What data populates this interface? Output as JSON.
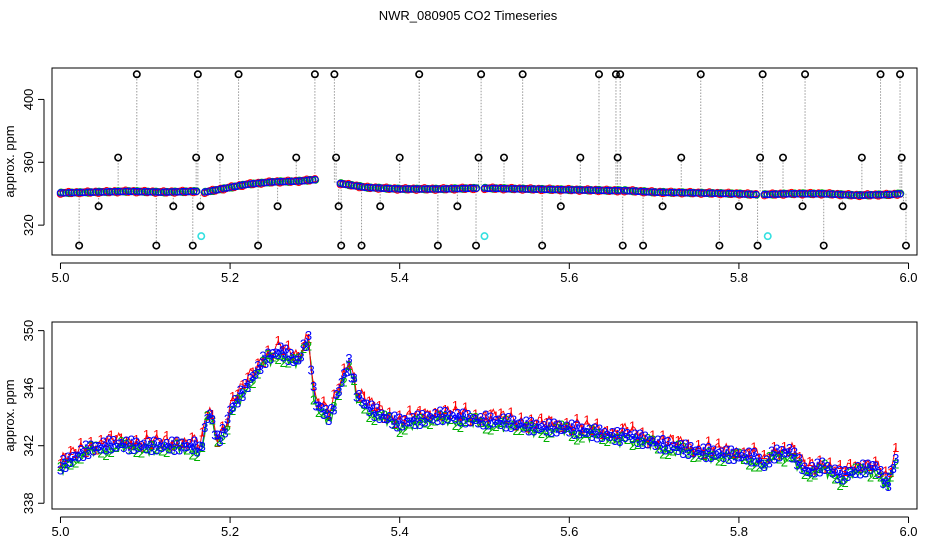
{
  "title": "NWR_080905  CO2 Timeseries",
  "colors": {
    "black": "#000000",
    "red": "#ff0000",
    "green": "#00b000",
    "blue": "#0000ff",
    "cyan": "#33e0e0",
    "grey": "#9a9a9a"
  },
  "chart_data": [
    {
      "type": "scatter",
      "name": "top-panel",
      "xlabel": "",
      "ylabel": "approx. ppm",
      "xlim": [
        4.99,
        6.01
      ],
      "ylim": [
        301,
        420
      ],
      "xticks": [
        5.0,
        5.2,
        5.4,
        5.6,
        5.8,
        6.0
      ],
      "xtick_labels": [
        "5.0",
        "5.2",
        "5.4",
        "5.6",
        "5.8",
        "6.0"
      ],
      "yticks": [
        320,
        360,
        400
      ],
      "ytick_labels": [
        "320",
        "360",
        "400"
      ],
      "baseline_segments": [
        {
          "x": [
            5.0,
            5.04,
            5.08,
            5.12,
            5.16
          ],
          "y": [
            340.5,
            341,
            341.5,
            341,
            341.5
          ]
        },
        {
          "x": [
            5.17,
            5.2,
            5.22,
            5.25,
            5.28,
            5.3
          ],
          "y": [
            341,
            344,
            346,
            347.5,
            348,
            349
          ]
        },
        {
          "x": [
            5.33,
            5.36,
            5.4,
            5.45,
            5.49
          ],
          "y": [
            346.5,
            344,
            343,
            343,
            343.5
          ]
        },
        {
          "x": [
            5.5,
            5.55,
            5.6,
            5.65,
            5.66
          ],
          "y": [
            343.5,
            343,
            342.5,
            342,
            342
          ]
        },
        {
          "x": [
            5.665,
            5.7,
            5.75,
            5.8,
            5.82
          ],
          "y": [
            342,
            341,
            340.5,
            340,
            339.5
          ]
        },
        {
          "x": [
            5.83,
            5.86,
            5.9,
            5.94,
            5.98,
            5.99
          ],
          "y": [
            339.5,
            340,
            340,
            339,
            339.5,
            340
          ]
        }
      ],
      "spikes": [
        {
          "x": 5.022,
          "y": 307
        },
        {
          "x": 5.045,
          "y": 332
        },
        {
          "x": 5.068,
          "y": 363
        },
        {
          "x": 5.09,
          "y": 416
        },
        {
          "x": 5.113,
          "y": 307
        },
        {
          "x": 5.133,
          "y": 332
        },
        {
          "x": 5.156,
          "y": 307
        },
        {
          "x": 5.16,
          "y": 363
        },
        {
          "x": 5.162,
          "y": 416
        },
        {
          "x": 5.165,
          "y": 332
        },
        {
          "x": 5.188,
          "y": 363
        },
        {
          "x": 5.21,
          "y": 416
        },
        {
          "x": 5.233,
          "y": 307
        },
        {
          "x": 5.256,
          "y": 332
        },
        {
          "x": 5.278,
          "y": 363
        },
        {
          "x": 5.3,
          "y": 416
        },
        {
          "x": 5.323,
          "y": 416
        },
        {
          "x": 5.325,
          "y": 363
        },
        {
          "x": 5.328,
          "y": 332
        },
        {
          "x": 5.331,
          "y": 307
        },
        {
          "x": 5.355,
          "y": 307
        },
        {
          "x": 5.377,
          "y": 332
        },
        {
          "x": 5.4,
          "y": 363
        },
        {
          "x": 5.423,
          "y": 416
        },
        {
          "x": 5.445,
          "y": 307
        },
        {
          "x": 5.468,
          "y": 332
        },
        {
          "x": 5.49,
          "y": 307
        },
        {
          "x": 5.493,
          "y": 363
        },
        {
          "x": 5.496,
          "y": 416
        },
        {
          "x": 5.523,
          "y": 363
        },
        {
          "x": 5.545,
          "y": 416
        },
        {
          "x": 5.568,
          "y": 307
        },
        {
          "x": 5.59,
          "y": 332
        },
        {
          "x": 5.613,
          "y": 363
        },
        {
          "x": 5.635,
          "y": 416
        },
        {
          "x": 5.655,
          "y": 416
        },
        {
          "x": 5.657,
          "y": 363
        },
        {
          "x": 5.66,
          "y": 416
        },
        {
          "x": 5.663,
          "y": 307
        },
        {
          "x": 5.687,
          "y": 307
        },
        {
          "x": 5.71,
          "y": 332
        },
        {
          "x": 5.732,
          "y": 363
        },
        {
          "x": 5.755,
          "y": 416
        },
        {
          "x": 5.777,
          "y": 307
        },
        {
          "x": 5.8,
          "y": 332
        },
        {
          "x": 5.822,
          "y": 307
        },
        {
          "x": 5.825,
          "y": 363
        },
        {
          "x": 5.828,
          "y": 416
        },
        {
          "x": 5.852,
          "y": 363
        },
        {
          "x": 5.875,
          "y": 332
        },
        {
          "x": 5.878,
          "y": 416
        },
        {
          "x": 5.9,
          "y": 307
        },
        {
          "x": 5.922,
          "y": 332
        },
        {
          "x": 5.945,
          "y": 363
        },
        {
          "x": 5.967,
          "y": 416
        },
        {
          "x": 5.99,
          "y": 416
        },
        {
          "x": 5.992,
          "y": 363
        },
        {
          "x": 5.994,
          "y": 332
        },
        {
          "x": 5.997,
          "y": 307
        }
      ],
      "cyan_points": [
        {
          "x": 5.166,
          "y": 313
        },
        {
          "x": 5.5,
          "y": 313
        },
        {
          "x": 5.834,
          "y": 313
        }
      ]
    },
    {
      "type": "line",
      "name": "bottom-panel",
      "xlabel": "",
      "ylabel": "approx. ppm",
      "xlim": [
        4.99,
        6.01
      ],
      "ylim": [
        337.6,
        350.6
      ],
      "xticks": [
        5.0,
        5.2,
        5.4,
        5.6,
        5.8,
        6.0
      ],
      "xtick_labels": [
        "5.0",
        "5.2",
        "5.4",
        "5.6",
        "5.8",
        "6.0"
      ],
      "yticks": [
        338,
        342,
        346,
        350
      ],
      "ytick_labels": [
        "338",
        "342",
        "346",
        "350"
      ],
      "series_labels": [
        "1",
        "2",
        "3"
      ],
      "profile": [
        [
          5.0,
          340.6
        ],
        [
          5.03,
          341.7
        ],
        [
          5.06,
          342.1
        ],
        [
          5.1,
          342.0
        ],
        [
          5.16,
          342.0
        ],
        [
          5.165,
          341.6
        ],
        [
          5.175,
          344.5
        ],
        [
          5.185,
          342.4
        ],
        [
          5.195,
          343.2
        ],
        [
          5.2,
          344.5
        ],
        [
          5.22,
          346.2
        ],
        [
          5.24,
          348.0
        ],
        [
          5.26,
          348.6
        ],
        [
          5.28,
          347.8
        ],
        [
          5.292,
          349.6
        ],
        [
          5.3,
          345.0
        ],
        [
          5.31,
          344.4
        ],
        [
          5.318,
          344.0
        ],
        [
          5.33,
          346.2
        ],
        [
          5.34,
          347.8
        ],
        [
          5.35,
          345.5
        ],
        [
          5.36,
          344.8
        ],
        [
          5.38,
          344.0
        ],
        [
          5.4,
          343.6
        ],
        [
          5.42,
          343.8
        ],
        [
          5.45,
          344.1
        ],
        [
          5.48,
          343.9
        ],
        [
          5.495,
          343.7
        ],
        [
          5.5,
          343.8
        ],
        [
          5.53,
          343.6
        ],
        [
          5.56,
          343.3
        ],
        [
          5.6,
          343.2
        ],
        [
          5.64,
          342.8
        ],
        [
          5.662,
          342.6
        ],
        [
          5.665,
          342.8
        ],
        [
          5.7,
          342.2
        ],
        [
          5.75,
          341.6
        ],
        [
          5.8,
          341.3
        ],
        [
          5.82,
          341.2
        ],
        [
          5.83,
          340.6
        ],
        [
          5.84,
          341.4
        ],
        [
          5.86,
          341.6
        ],
        [
          5.88,
          340.2
        ],
        [
          5.9,
          340.6
        ],
        [
          5.92,
          339.9
        ],
        [
          5.94,
          340.3
        ],
        [
          5.96,
          340.6
        ],
        [
          5.975,
          339.3
        ],
        [
          5.985,
          341.1
        ]
      ]
    }
  ]
}
